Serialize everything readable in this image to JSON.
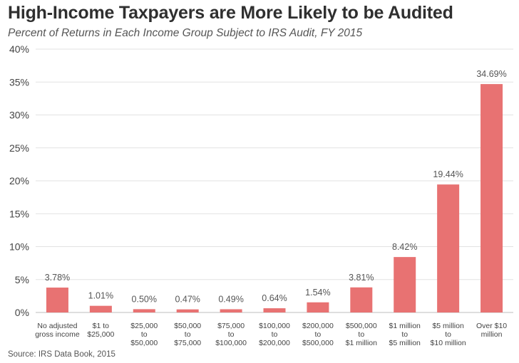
{
  "chart_data": {
    "type": "bar",
    "title": "High-Income Taxpayers are More Likely to be Audited",
    "subtitle": "Percent of Returns in Each Income Group Subject to IRS Audit, FY 2015",
    "source": "Source: IRS Data Book, 2015",
    "xlabel": "",
    "ylabel": "",
    "ylim": [
      0,
      40
    ],
    "yticks": [
      "0%",
      "5%",
      "10%",
      "15%",
      "20%",
      "25%",
      "30%",
      "35%",
      "40%"
    ],
    "ytick_values": [
      0,
      5,
      10,
      15,
      20,
      25,
      30,
      35,
      40
    ],
    "grid": true,
    "legend": "none",
    "bar_color": "#e87272",
    "categories": [
      [
        "No adjusted",
        "gross income"
      ],
      [
        "$1 to",
        "$25,000"
      ],
      [
        "$25,000",
        "to",
        "$50,000"
      ],
      [
        "$50,000",
        "to",
        "$75,000"
      ],
      [
        "$75,000",
        "to",
        "$100,000"
      ],
      [
        "$100,000",
        "to",
        "$200,000"
      ],
      [
        "$200,000",
        "to",
        "$500,000"
      ],
      [
        "$500,000",
        "to",
        "$1 million"
      ],
      [
        "$1 million",
        "to",
        "$5 million"
      ],
      [
        "$5 million",
        "to",
        "$10 million"
      ],
      [
        "Over $10",
        "million"
      ]
    ],
    "values": [
      3.78,
      1.01,
      0.5,
      0.47,
      0.49,
      0.64,
      1.54,
      3.81,
      8.42,
      19.44,
      34.69
    ],
    "value_labels": [
      "3.78%",
      "1.01%",
      "0.50%",
      "0.47%",
      "0.49%",
      "0.64%",
      "1.54%",
      "3.81%",
      "8.42%",
      "19.44%",
      "34.69%"
    ]
  }
}
